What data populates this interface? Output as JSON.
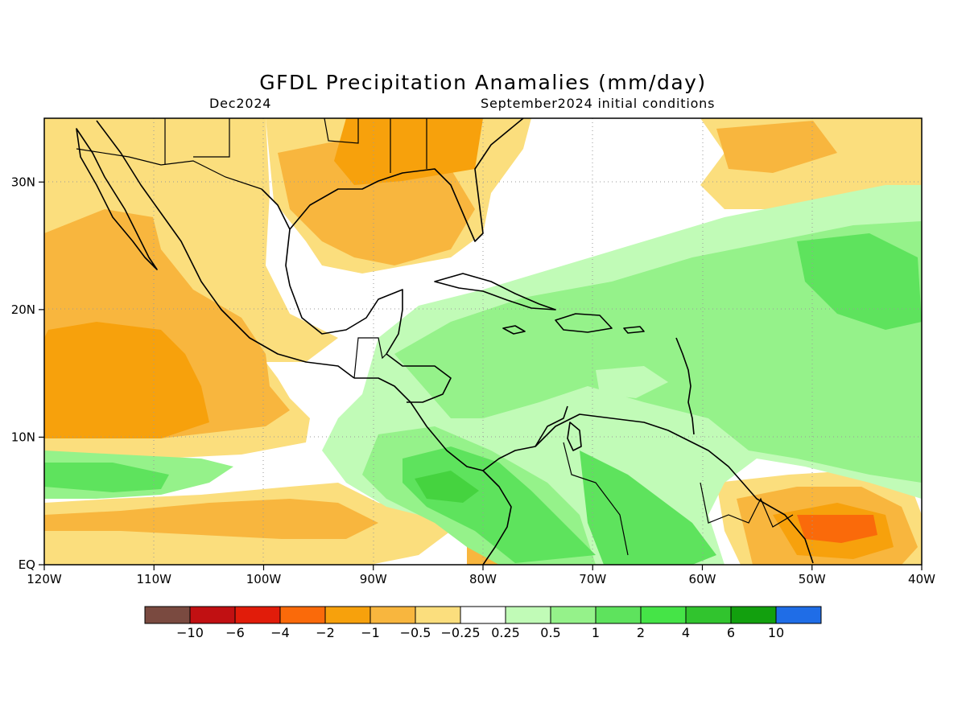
{
  "title": "GFDL Precipitation Anamalies (mm/day)",
  "valid_month": "Dec2024",
  "init_label": "September2024 initial conditions",
  "map": {
    "lon_range": [
      -120,
      -40
    ],
    "lat_range": [
      0,
      35
    ],
    "x_tick_labels": [
      "120W",
      "110W",
      "100W",
      "90W",
      "80W",
      "70W",
      "60W",
      "50W",
      "40W"
    ],
    "y_tick_labels": [
      "EQ",
      "10N",
      "20N",
      "30N"
    ],
    "gridlines": true,
    "fill_colors": {
      "very_dry": "#f7a10c",
      "dry": "#f8b63e",
      "slightly_dry": "#fbde7d",
      "neutral": "#ffffff",
      "slightly_wet": "#c1fbb7",
      "wet": "#95f28a",
      "wetter": "#5ee35d",
      "very_wet": "#45d33f",
      "strong_dry": "#fa6a0a"
    }
  },
  "colorbar": {
    "labels": [
      "−10",
      "−6",
      "−4",
      "−2",
      "−1",
      "−0.5",
      "−0.25",
      "0.25",
      "0.5",
      "1",
      "2",
      "4",
      "6",
      "10"
    ],
    "colors": [
      "#7a4a40",
      "#c11012",
      "#e11c0a",
      "#fa6a0a",
      "#f7a10c",
      "#f8b63e",
      "#fbde7d",
      "#ffffff",
      "#c1fbb7",
      "#95f28a",
      "#5ee35d",
      "#45e447",
      "#31c42e",
      "#12a00e",
      "#1f6de7"
    ]
  }
}
